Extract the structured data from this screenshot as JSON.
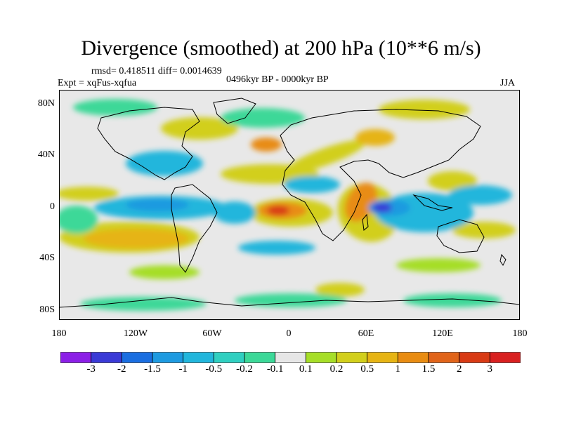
{
  "title": "Divergence (smoothed) at 200 hPa (10**6 m/s)",
  "subtitles": {
    "stats": "rmsd= 0.418511 diff= 0.0014639",
    "expt": "Expt = xqFus-xqfua",
    "period": "0496kyr BP - 0000kyr BP",
    "season": "JJA"
  },
  "map": {
    "projection": "cylindrical equidistant",
    "lon_range": [
      -180,
      180
    ],
    "lat_range": [
      -90,
      90
    ],
    "lat_ticks": [
      {
        "value": 80,
        "label": "80N"
      },
      {
        "value": 40,
        "label": "40N"
      },
      {
        "value": 0,
        "label": "0"
      },
      {
        "value": -40,
        "label": "40S"
      },
      {
        "value": -80,
        "label": "80S"
      }
    ],
    "lon_ticks": [
      {
        "value": -180,
        "label": "180"
      },
      {
        "value": -120,
        "label": "120W"
      },
      {
        "value": -60,
        "label": "60W"
      },
      {
        "value": 0,
        "label": "0"
      },
      {
        "value": 60,
        "label": "60E"
      },
      {
        "value": 120,
        "label": "120E"
      },
      {
        "value": 180,
        "label": "180"
      }
    ],
    "background_color": "#e8e8e8",
    "coastline_color": "#000000"
  },
  "colorbar": {
    "labels": [
      "-3",
      "-2",
      "-1.5",
      "-1",
      "-0.5",
      "-0.2",
      "-0.1",
      "0.1",
      "0.2",
      "0.5",
      "1",
      "1.5",
      "2",
      "3"
    ],
    "colors": [
      "#8b1fe6",
      "#3a3ad6",
      "#1a6ee0",
      "#1e9ae0",
      "#22b6dc",
      "#30cfc0",
      "#3cd898",
      "#e6e6e6",
      "#a6de28",
      "#d2cf1c",
      "#e6b414",
      "#e88c12",
      "#e0641a",
      "#d83a14",
      "#d82020"
    ]
  },
  "field_levels": {
    "strong_neg": "#3a3ad6",
    "mid_neg": "#1e9ae0",
    "weak_neg": "#22b6dc",
    "faint_neg": "#3cd898",
    "faint_pos": "#a6de28",
    "weak_pos": "#d2cf1c",
    "mid_pos": "#e6b414",
    "strong_pos": "#e88c12",
    "max_pos": "#d83a14"
  }
}
